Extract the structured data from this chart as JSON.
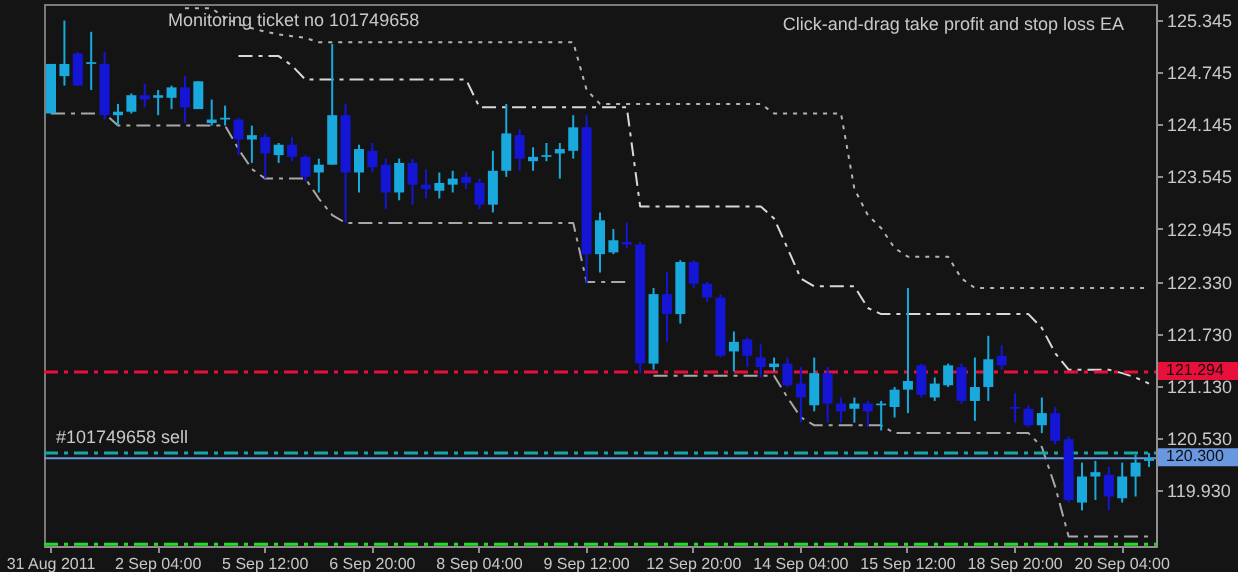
{
  "chart_data": {
    "type": "candlestick",
    "categories": [
      "31 Aug 2011",
      null,
      null,
      null,
      null,
      null,
      null,
      null,
      "2 Sep 04:00",
      null,
      null,
      null,
      null,
      null,
      null,
      null,
      "5 Sep 12:00",
      null,
      null,
      null,
      null,
      null,
      null,
      null,
      "6 Sep 20:00",
      null,
      null,
      null,
      null,
      null,
      null,
      null,
      "8 Sep 04:00",
      null,
      null,
      null,
      null,
      null,
      null,
      null,
      "9 Sep 12:00",
      null,
      null,
      null,
      null,
      null,
      null,
      null,
      "12 Sep 20:00",
      null,
      null,
      null,
      null,
      null,
      null,
      null,
      "14 Sep 04:00",
      null,
      null,
      null,
      null,
      null,
      null,
      null,
      "15 Sep 12:00",
      null,
      null,
      null,
      null,
      null,
      null,
      null,
      "18 Sep 20:00",
      null,
      null,
      null,
      null,
      null,
      null,
      null,
      "20 Sep 04:00",
      null,
      null
    ],
    "ohlc": [
      [
        124.27,
        124.84,
        124.27,
        124.84
      ],
      [
        124.7,
        125.34,
        124.59,
        124.84
      ],
      [
        124.96,
        124.98,
        124.59,
        124.59
      ],
      [
        124.84,
        125.21,
        124.54,
        124.86
      ],
      [
        124.84,
        124.98,
        124.2,
        124.25
      ],
      [
        124.25,
        124.38,
        124.13,
        124.29
      ],
      [
        124.29,
        124.5,
        124.27,
        124.48
      ],
      [
        124.48,
        124.61,
        124.34,
        124.43
      ],
      [
        124.45,
        124.54,
        124.25,
        124.48
      ],
      [
        124.45,
        124.59,
        124.32,
        124.57
      ],
      [
        124.57,
        124.7,
        124.16,
        124.34
      ],
      [
        124.32,
        124.64,
        124.32,
        124.64
      ],
      [
        124.16,
        124.43,
        124.13,
        124.2
      ],
      [
        124.2,
        124.36,
        124.13,
        124.22
      ],
      [
        124.2,
        124.22,
        123.79,
        123.97
      ],
      [
        123.97,
        124.13,
        123.7,
        124.02
      ],
      [
        124.0,
        124.04,
        123.52,
        123.81
      ],
      [
        123.79,
        123.93,
        123.7,
        123.91
      ],
      [
        123.91,
        124.0,
        123.72,
        123.77
      ],
      [
        123.77,
        123.79,
        123.49,
        123.54
      ],
      [
        123.59,
        123.75,
        123.36,
        123.68
      ],
      [
        123.68,
        125.07,
        123.68,
        124.25
      ],
      [
        124.25,
        124.38,
        123.01,
        123.59
      ],
      [
        123.59,
        123.91,
        123.36,
        123.86
      ],
      [
        123.84,
        123.93,
        123.59,
        123.65
      ],
      [
        123.68,
        123.75,
        123.17,
        123.36
      ],
      [
        123.36,
        123.75,
        123.27,
        123.7
      ],
      [
        123.7,
        123.75,
        123.22,
        123.45
      ],
      [
        123.45,
        123.63,
        123.29,
        123.4
      ],
      [
        123.38,
        123.59,
        123.29,
        123.47
      ],
      [
        123.45,
        123.61,
        123.36,
        123.52
      ],
      [
        123.54,
        123.59,
        123.4,
        123.47
      ],
      [
        123.47,
        123.52,
        123.17,
        123.22
      ],
      [
        123.22,
        123.84,
        123.13,
        123.61
      ],
      [
        123.61,
        124.38,
        123.54,
        124.04
      ],
      [
        124.02,
        124.09,
        123.61,
        123.75
      ],
      [
        123.72,
        123.88,
        123.61,
        123.77
      ],
      [
        123.77,
        123.93,
        123.72,
        123.79
      ],
      [
        123.81,
        123.93,
        123.52,
        123.86
      ],
      [
        123.84,
        124.25,
        123.75,
        124.11
      ],
      [
        124.11,
        124.25,
        122.31,
        122.65
      ],
      [
        122.65,
        123.13,
        122.44,
        123.04
      ],
      [
        122.67,
        122.94,
        122.65,
        122.81
      ],
      [
        122.79,
        123.01,
        122.72,
        122.76
      ],
      [
        122.76,
        122.79,
        121.28,
        121.39
      ],
      [
        121.39,
        122.26,
        121.32,
        122.19
      ],
      [
        122.19,
        122.44,
        121.64,
        121.96
      ],
      [
        121.96,
        122.58,
        121.85,
        122.56
      ],
      [
        122.56,
        122.58,
        122.26,
        122.31
      ],
      [
        122.31,
        122.33,
        122.1,
        122.15
      ],
      [
        122.15,
        122.19,
        121.46,
        121.48
      ],
      [
        121.53,
        121.76,
        121.3,
        121.64
      ],
      [
        121.67,
        121.69,
        121.35,
        121.48
      ],
      [
        121.46,
        121.62,
        121.23,
        121.35
      ],
      [
        121.35,
        121.46,
        121.3,
        121.39
      ],
      [
        121.39,
        121.46,
        121.12,
        121.14
      ],
      [
        121.16,
        121.35,
        120.71,
        121.0
      ],
      [
        120.91,
        121.46,
        120.84,
        121.28
      ],
      [
        121.28,
        121.35,
        120.71,
        120.93
      ],
      [
        120.93,
        121.0,
        120.71,
        120.84
      ],
      [
        120.87,
        121.0,
        120.71,
        120.93
      ],
      [
        120.93,
        120.96,
        120.66,
        120.84
      ],
      [
        120.91,
        120.96,
        120.62,
        120.93
      ],
      [
        120.89,
        121.12,
        120.77,
        121.09
      ],
      [
        121.09,
        122.26,
        120.82,
        121.19
      ],
      [
        121.37,
        121.39,
        121.0,
        121.03
      ],
      [
        121.0,
        121.23,
        120.96,
        121.16
      ],
      [
        121.14,
        121.39,
        121.12,
        121.37
      ],
      [
        121.35,
        121.39,
        120.93,
        120.96
      ],
      [
        120.96,
        121.46,
        120.73,
        121.12
      ],
      [
        121.12,
        121.71,
        120.96,
        121.44
      ],
      [
        121.48,
        121.6,
        121.32,
        121.37
      ],
      [
        120.89,
        121.05,
        120.71,
        120.87
      ],
      [
        120.87,
        120.91,
        120.66,
        120.68
      ],
      [
        120.68,
        121.0,
        120.59,
        120.82
      ],
      [
        120.82,
        120.89,
        120.46,
        120.5
      ],
      [
        120.52,
        120.55,
        119.79,
        119.82
      ],
      [
        119.79,
        120.25,
        119.7,
        120.09
      ],
      [
        120.09,
        120.27,
        119.82,
        120.14
      ],
      [
        120.11,
        120.2,
        119.7,
        119.86
      ],
      [
        119.84,
        120.25,
        119.79,
        120.09
      ],
      [
        120.09,
        120.34,
        119.86,
        120.25
      ],
      [
        120.27,
        120.36,
        120.2,
        120.3
      ]
    ],
    "colors": [
      "#19a9dc",
      "#19a9dc",
      "#1515d6",
      "#19a9dc",
      "#1515d6",
      "#19a9dc",
      "#19a9dc",
      "#1515d6",
      "#19a9dc",
      "#19a9dc",
      "#1515d6",
      "#19a9dc",
      "#19a9dc",
      "#19a9dc",
      "#1515d6",
      "#19a9dc",
      "#1515d6",
      "#19a9dc",
      "#1515d6",
      "#1515d6",
      "#19a9dc",
      "#19a9dc",
      "#1515d6",
      "#19a9dc",
      "#1515d6",
      "#1515d6",
      "#19a9dc",
      "#1515d6",
      "#1515d6",
      "#19a9dc",
      "#19a9dc",
      "#1515d6",
      "#1515d6",
      "#19a9dc",
      "#19a9dc",
      "#1515d6",
      "#19a9dc",
      "#19a9dc",
      "#19a9dc",
      "#19a9dc",
      "#1515d6",
      "#19a9dc",
      "#19a9dc",
      "#1515d6",
      "#1515d6",
      "#19a9dc",
      "#1515d6",
      "#19a9dc",
      "#1515d6",
      "#1515d6",
      "#1515d6",
      "#19a9dc",
      "#1515d6",
      "#1515d6",
      "#19a9dc",
      "#1515d6",
      "#1515d6",
      "#19a9dc",
      "#1515d6",
      "#1515d6",
      "#19a9dc",
      "#1515d6",
      "#19a9dc",
      "#19a9dc",
      "#19a9dc",
      "#1515d6",
      "#19a9dc",
      "#19a9dc",
      "#1515d6",
      "#19a9dc",
      "#19a9dc",
      "#1515d6",
      "#1515d6",
      "#1515d6",
      "#19a9dc",
      "#1515d6",
      "#1515d6",
      "#19a9dc",
      "#19a9dc",
      "#1515d6",
      "#19a9dc",
      "#19a9dc",
      "#19a9dc"
    ],
    "series": [
      {
        "type": "line",
        "color": "#b4b4b4",
        "line_style": "dotted",
        "values": [
          null,
          null,
          null,
          null,
          null,
          null,
          null,
          null,
          null,
          null,
          125.48,
          125.48,
          125.48,
          125.37,
          125.3,
          125.25,
          125.21,
          125.18,
          125.16,
          125.14,
          125.09,
          125.09,
          125.09,
          125.09,
          125.09,
          125.09,
          125.09,
          125.09,
          125.09,
          125.09,
          125.09,
          125.09,
          125.09,
          125.09,
          125.09,
          125.09,
          125.09,
          125.09,
          125.09,
          125.09,
          124.54,
          124.38,
          124.38,
          124.38,
          124.38,
          124.38,
          124.38,
          124.38,
          124.38,
          124.38,
          124.38,
          124.38,
          124.38,
          124.38,
          124.27,
          124.27,
          124.27,
          124.27,
          124.27,
          124.27,
          123.4,
          123.1,
          122.95,
          122.72,
          122.62,
          122.62,
          122.62,
          122.62,
          122.37,
          122.26,
          122.26,
          122.26,
          122.26,
          122.26,
          122.26,
          122.26,
          122.26,
          122.26,
          122.26,
          122.26,
          122.26,
          122.26,
          122.26
        ]
      },
      {
        "type": "line",
        "color": "#d8d8d8",
        "line_style": "dashed",
        "values": [
          null,
          null,
          null,
          null,
          null,
          null,
          null,
          null,
          null,
          null,
          null,
          null,
          null,
          null,
          124.93,
          124.93,
          124.93,
          124.93,
          124.82,
          124.66,
          124.66,
          124.66,
          124.66,
          124.66,
          124.66,
          124.66,
          124.66,
          124.66,
          124.66,
          124.66,
          124.66,
          124.66,
          124.34,
          124.34,
          124.34,
          124.34,
          124.34,
          124.34,
          124.34,
          124.34,
          124.34,
          124.34,
          124.34,
          124.34,
          123.2,
          123.2,
          123.2,
          123.2,
          123.2,
          123.2,
          123.2,
          123.2,
          123.2,
          123.2,
          123.06,
          122.72,
          122.37,
          122.28,
          122.28,
          122.28,
          122.28,
          122.03,
          121.96,
          121.96,
          121.96,
          121.96,
          121.96,
          121.96,
          121.96,
          121.96,
          121.96,
          121.96,
          121.96,
          121.96,
          121.8,
          121.51,
          121.32,
          121.32,
          121.32,
          121.32,
          121.28,
          121.23,
          121.16
        ]
      },
      {
        "type": "line",
        "color": "#a8a8a8",
        "line_style": "dashed",
        "values": [
          124.27,
          124.27,
          124.27,
          124.27,
          124.27,
          124.13,
          124.13,
          124.13,
          124.13,
          124.13,
          124.13,
          124.13,
          124.13,
          124.13,
          123.86,
          123.63,
          123.52,
          123.52,
          123.52,
          123.52,
          123.29,
          123.1,
          123.01,
          123.01,
          123.01,
          123.01,
          123.01,
          123.01,
          123.01,
          123.01,
          123.01,
          123.01,
          123.01,
          123.01,
          123.01,
          123.01,
          123.01,
          123.01,
          123.01,
          123.01,
          122.33,
          122.33,
          122.33,
          122.33,
          null,
          121.25,
          121.25,
          121.25,
          121.25,
          121.25,
          121.25,
          121.25,
          121.25,
          121.25,
          121.25,
          121.0,
          120.77,
          120.68,
          120.68,
          120.68,
          120.68,
          120.68,
          120.68,
          120.59,
          120.59,
          120.59,
          120.59,
          120.59,
          120.59,
          120.59,
          120.59,
          120.59,
          120.59,
          120.59,
          120.43,
          119.97,
          119.4,
          119.4,
          119.4,
          119.4,
          119.4,
          119.4,
          119.4
        ]
      }
    ],
    "ylim": [
      119.29,
      125.53
    ],
    "yticks": [
      125.345,
      124.745,
      124.145,
      123.545,
      122.945,
      {
        "value": 122.33,
        "label": "122.330"
      },
      {
        "value": 121.73,
        "label": "121.730"
      },
      {
        "value": 121.13,
        "label": "121.130"
      },
      {
        "value": 120.53,
        "label": "120.530"
      },
      {
        "value": 119.93,
        "label": "119.930"
      }
    ],
    "ref_lines": [
      {
        "axis": "y",
        "value": 121.294,
        "label": "121.294",
        "color": "#e8103a",
        "line_style": "dashed"
      },
      {
        "axis": "y",
        "value": 120.36,
        "label": "#101749658 sell",
        "color": "#16a8a8",
        "line_style": "dashed"
      },
      {
        "axis": "y",
        "value": 120.3,
        "label": "120.300",
        "color": "#6a98e0",
        "line_style": "solid"
      },
      {
        "axis": "y",
        "value": 119.31,
        "color": "#22dd22",
        "line_style": "dashed"
      }
    ],
    "annotations": [
      "Monitoring ticket no 101749658",
      "Click-and-drag take profit and stop loss EA"
    ]
  }
}
